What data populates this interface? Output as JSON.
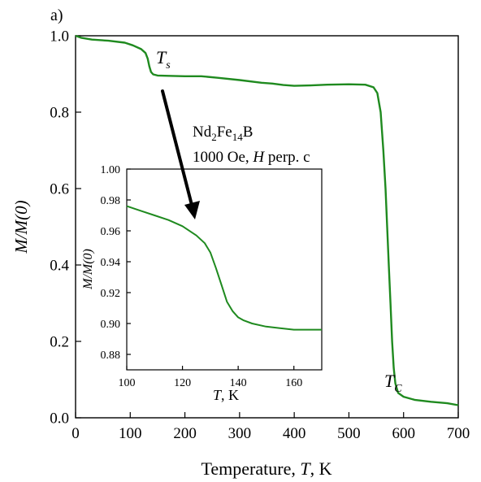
{
  "panel_label": "a)",
  "chart_data": [
    {
      "type": "line",
      "role": "main",
      "xlabel": "Temperature, T, K",
      "ylabel": "M/M(0)",
      "xlim": [
        0,
        700
      ],
      "ylim": [
        0.0,
        1.0
      ],
      "xticks": [
        0,
        100,
        200,
        300,
        400,
        500,
        600,
        700
      ],
      "yticks": [
        0.0,
        0.2,
        0.4,
        0.6,
        0.8,
        1.0
      ],
      "ytick_decimals": 1,
      "grid": false,
      "color": "#1f8a1f",
      "series": [
        {
          "x": [
            0,
            10,
            30,
            60,
            90,
            105,
            120,
            128,
            132,
            135,
            138,
            142,
            150,
            170,
            200,
            230,
            260,
            300,
            340,
            360,
            380,
            400,
            430,
            460,
            500,
            530,
            545,
            552,
            558,
            563,
            567,
            570,
            573,
            576,
            579,
            582,
            585,
            590,
            600,
            620,
            650,
            680,
            700
          ],
          "y": [
            1.0,
            0.995,
            0.99,
            0.987,
            0.982,
            0.975,
            0.965,
            0.955,
            0.94,
            0.92,
            0.905,
            0.899,
            0.896,
            0.895,
            0.894,
            0.894,
            0.89,
            0.884,
            0.877,
            0.875,
            0.871,
            0.869,
            0.87,
            0.872,
            0.873,
            0.872,
            0.865,
            0.85,
            0.8,
            0.7,
            0.6,
            0.5,
            0.4,
            0.3,
            0.2,
            0.13,
            0.09,
            0.065,
            0.055,
            0.047,
            0.042,
            0.038,
            0.033
          ]
        }
      ]
    },
    {
      "type": "line",
      "role": "inset",
      "xlabel": "T, K",
      "ylabel": "M/M(0)",
      "xlim": [
        100,
        170
      ],
      "ylim": [
        0.87,
        1.0
      ],
      "xticks": [
        100,
        120,
        140,
        160
      ],
      "yticks": [
        0.88,
        0.9,
        0.92,
        0.94,
        0.96,
        0.98,
        1.0
      ],
      "ytick_decimals": 2,
      "grid": false,
      "color": "#1f8a1f",
      "series": [
        {
          "x": [
            100,
            105,
            110,
            115,
            120,
            125,
            128,
            130,
            132,
            134,
            136,
            138,
            140,
            142,
            145,
            150,
            155,
            160,
            165,
            170
          ],
          "y": [
            0.976,
            0.973,
            0.97,
            0.967,
            0.963,
            0.957,
            0.952,
            0.946,
            0.936,
            0.925,
            0.914,
            0.908,
            0.904,
            0.902,
            0.9,
            0.898,
            0.897,
            0.896,
            0.896,
            0.896
          ]
        }
      ]
    }
  ],
  "annotations": {
    "ts_main": "T",
    "ts_sub": "s",
    "tc_main": "T",
    "tc_sub": "C",
    "compound": {
      "a": "Nd",
      "a_sub": "2",
      "b": "Fe",
      "b_sub": "14",
      "c": "B"
    },
    "field_pre": "1000 Oe, ",
    "field_var": "H",
    "field_post": " perp. c"
  }
}
